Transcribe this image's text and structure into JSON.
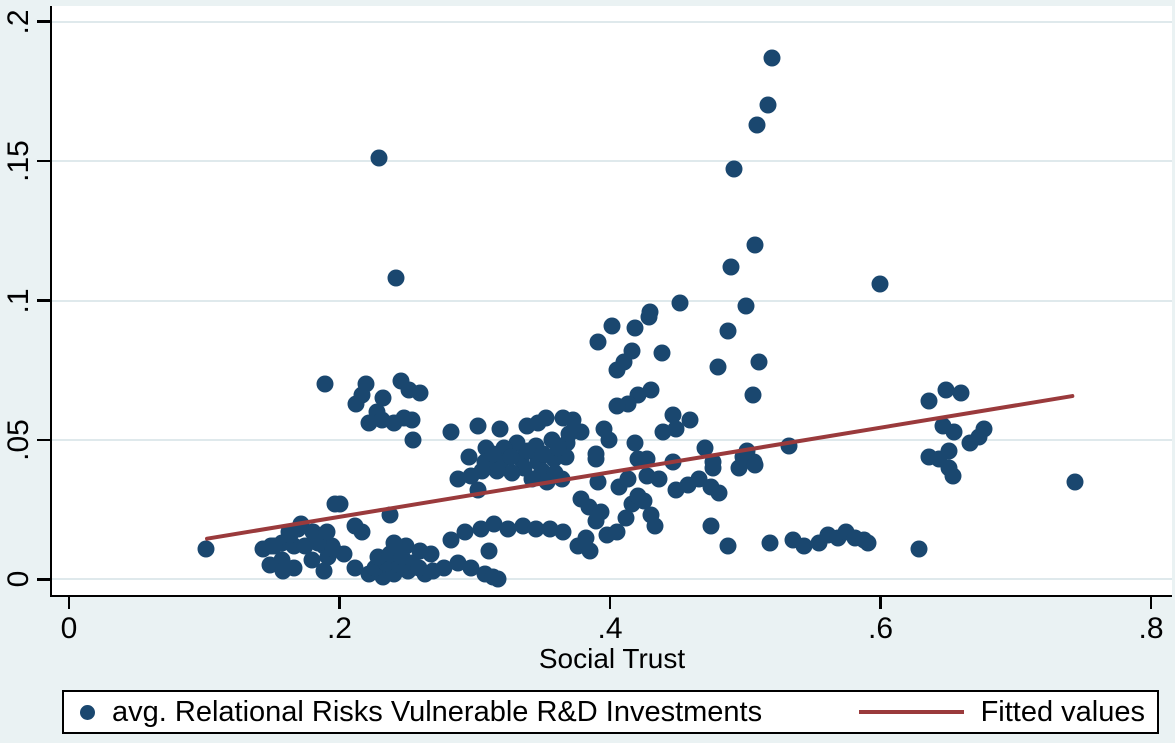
{
  "colors": {
    "background": "#eaf2f3",
    "plot_background": "#ffffff",
    "grid": "#dfe9ec",
    "axis": "#000000",
    "marker": "#1a476f",
    "fitted_line": "#9a3a3c"
  },
  "legend": {
    "scatter_label": "avg. Relational Risks Vulnerable R&D Investments",
    "line_label": "Fitted values"
  },
  "chart_data": {
    "type": "scatter",
    "title": "",
    "xlabel": "Social Trust",
    "ylabel": "",
    "grid": "horizontal",
    "legend_position": "bottom",
    "xlim": [
      -0.014,
      0.814
    ],
    "ylim": [
      -0.0056,
      0.2056
    ],
    "x_ticks": [
      0,
      0.2,
      0.4,
      0.6,
      0.8
    ],
    "x_tick_labels": [
      "0",
      ".2",
      ".4",
      ".6",
      ".8"
    ],
    "y_ticks": [
      0,
      0.05,
      0.1,
      0.15,
      0.2
    ],
    "y_tick_labels": [
      "0",
      ".05",
      ".1",
      ".15",
      ".2"
    ],
    "series": [
      {
        "name": "avg. Relational Risks Vulnerable R&D Investments",
        "type": "scatter",
        "points": [
          [
            0.518,
            0.187
          ],
          [
            0.515,
            0.17
          ],
          [
            0.507,
            0.163
          ],
          [
            0.49,
            0.147
          ],
          [
            0.506,
            0.12
          ],
          [
            0.488,
            0.112
          ],
          [
            0.598,
            0.106
          ],
          [
            0.228,
            0.151
          ],
          [
            0.24,
            0.108
          ],
          [
            0.45,
            0.099
          ],
          [
            0.499,
            0.098
          ],
          [
            0.427,
            0.094
          ],
          [
            0.4,
            0.091
          ],
          [
            0.417,
            0.09
          ],
          [
            0.486,
            0.089
          ],
          [
            0.39,
            0.085
          ],
          [
            0.428,
            0.096
          ],
          [
            0.415,
            0.082
          ],
          [
            0.437,
            0.081
          ],
          [
            0.409,
            0.078
          ],
          [
            0.404,
            0.075
          ],
          [
            0.478,
            0.076
          ],
          [
            0.509,
            0.078
          ],
          [
            0.504,
            0.066
          ],
          [
            0.419,
            0.066
          ],
          [
            0.429,
            0.068
          ],
          [
            0.412,
            0.063
          ],
          [
            0.404,
            0.062
          ],
          [
            0.445,
            0.059
          ],
          [
            0.458,
            0.057
          ],
          [
            0.371,
            0.057
          ],
          [
            0.377,
            0.053
          ],
          [
            0.367,
            0.049
          ],
          [
            0.394,
            0.054
          ],
          [
            0.398,
            0.05
          ],
          [
            0.417,
            0.049
          ],
          [
            0.438,
            0.053
          ],
          [
            0.447,
            0.054
          ],
          [
            0.388,
            0.045
          ],
          [
            0.419,
            0.043
          ],
          [
            0.426,
            0.043
          ],
          [
            0.469,
            0.047
          ],
          [
            0.531,
            0.048
          ],
          [
            0.5,
            0.046
          ],
          [
            0.505,
            0.042
          ],
          [
            0.475,
            0.042
          ],
          [
            0.494,
            0.04
          ],
          [
            0.497,
            0.044
          ],
          [
            0.506,
            0.041
          ],
          [
            0.188,
            0.07
          ],
          [
            0.218,
            0.07
          ],
          [
            0.215,
            0.066
          ],
          [
            0.244,
            0.071
          ],
          [
            0.25,
            0.068
          ],
          [
            0.258,
            0.067
          ],
          [
            0.231,
            0.065
          ],
          [
            0.211,
            0.063
          ],
          [
            0.226,
            0.06
          ],
          [
            0.23,
            0.057
          ],
          [
            0.22,
            0.056
          ],
          [
            0.239,
            0.056
          ],
          [
            0.246,
            0.058
          ],
          [
            0.252,
            0.057
          ],
          [
            0.281,
            0.053
          ],
          [
            0.253,
            0.05
          ],
          [
            0.301,
            0.055
          ],
          [
            0.317,
            0.054
          ],
          [
            0.337,
            0.055
          ],
          [
            0.345,
            0.056
          ],
          [
            0.351,
            0.058
          ],
          [
            0.364,
            0.058
          ],
          [
            0.368,
            0.052
          ],
          [
            0.356,
            0.05
          ],
          [
            0.344,
            0.048
          ],
          [
            0.33,
            0.049
          ],
          [
            0.32,
            0.047
          ],
          [
            0.307,
            0.047
          ],
          [
            0.294,
            0.044
          ],
          [
            0.306,
            0.042
          ],
          [
            0.318,
            0.042
          ],
          [
            0.333,
            0.043
          ],
          [
            0.345,
            0.042
          ],
          [
            0.357,
            0.043
          ],
          [
            0.366,
            0.044
          ],
          [
            0.312,
            0.045
          ],
          [
            0.325,
            0.044
          ],
          [
            0.338,
            0.046
          ],
          [
            0.349,
            0.045
          ],
          [
            0.36,
            0.047
          ],
          [
            0.335,
            0.04
          ],
          [
            0.348,
            0.039
          ],
          [
            0.358,
            0.038
          ],
          [
            0.326,
            0.038
          ],
          [
            0.315,
            0.039
          ],
          [
            0.304,
            0.039
          ],
          [
            0.296,
            0.037
          ],
          [
            0.341,
            0.036
          ],
          [
            0.352,
            0.035
          ],
          [
            0.363,
            0.036
          ],
          [
            0.388,
            0.043
          ],
          [
            0.39,
            0.035
          ],
          [
            0.405,
            0.033
          ],
          [
            0.412,
            0.036
          ],
          [
            0.426,
            0.037
          ],
          [
            0.435,
            0.036
          ],
          [
            0.447,
            0.032
          ],
          [
            0.456,
            0.034
          ],
          [
            0.464,
            0.036
          ],
          [
            0.473,
            0.033
          ],
          [
            0.479,
            0.031
          ],
          [
            0.445,
            0.042
          ],
          [
            0.475,
            0.04
          ],
          [
            0.377,
            0.029
          ],
          [
            0.383,
            0.026
          ],
          [
            0.392,
            0.024
          ],
          [
            0.388,
            0.021
          ],
          [
            0.396,
            0.016
          ],
          [
            0.381,
            0.015
          ],
          [
            0.375,
            0.012
          ],
          [
            0.384,
            0.01
          ],
          [
            0.404,
            0.017
          ],
          [
            0.41,
            0.022
          ],
          [
            0.415,
            0.027
          ],
          [
            0.419,
            0.03
          ],
          [
            0.424,
            0.028
          ],
          [
            0.429,
            0.023
          ],
          [
            0.432,
            0.019
          ],
          [
            0.473,
            0.019
          ],
          [
            0.486,
            0.012
          ],
          [
            0.286,
            0.036
          ],
          [
            0.301,
            0.032
          ],
          [
            0.281,
            0.014
          ],
          [
            0.291,
            0.017
          ],
          [
            0.303,
            0.018
          ],
          [
            0.313,
            0.02
          ],
          [
            0.323,
            0.018
          ],
          [
            0.334,
            0.019
          ],
          [
            0.344,
            0.018
          ],
          [
            0.354,
            0.018
          ],
          [
            0.364,
            0.017
          ],
          [
            0.309,
            0.01
          ],
          [
            0.1,
            0.011
          ],
          [
            0.199,
            0.027
          ],
          [
            0.195,
            0.027
          ],
          [
            0.236,
            0.023
          ],
          [
            0.21,
            0.019
          ],
          [
            0.215,
            0.017
          ],
          [
            0.17,
            0.02
          ],
          [
            0.161,
            0.017
          ],
          [
            0.179,
            0.017
          ],
          [
            0.156,
            0.013
          ],
          [
            0.148,
            0.012
          ],
          [
            0.142,
            0.011
          ],
          [
            0.165,
            0.012
          ],
          [
            0.173,
            0.012
          ],
          [
            0.187,
            0.012
          ],
          [
            0.193,
            0.012
          ],
          [
            0.19,
            0.008
          ],
          [
            0.178,
            0.007
          ],
          [
            0.156,
            0.007
          ],
          [
            0.147,
            0.005
          ],
          [
            0.165,
            0.004
          ],
          [
            0.202,
            0.009
          ],
          [
            0.21,
            0.004
          ],
          [
            0.22,
            0.002
          ],
          [
            0.231,
            0.001
          ],
          [
            0.239,
            0.002
          ],
          [
            0.249,
            0.003
          ],
          [
            0.262,
            0.002
          ],
          [
            0.268,
            0.003
          ],
          [
            0.276,
            0.004
          ],
          [
            0.286,
            0.006
          ],
          [
            0.296,
            0.004
          ],
          [
            0.306,
            0.002
          ],
          [
            0.316,
            0.0
          ],
          [
            0.266,
            0.009
          ],
          [
            0.258,
            0.01
          ],
          [
            0.248,
            0.012
          ],
          [
            0.239,
            0.013
          ],
          [
            0.15,
            0.012
          ],
          [
            0.162,
            0.016
          ],
          [
            0.168,
            0.018
          ],
          [
            0.183,
            0.013
          ],
          [
            0.189,
            0.017
          ],
          [
            0.194,
            0.011
          ],
          [
            0.157,
            0.003
          ],
          [
            0.187,
            0.003
          ],
          [
            0.312,
            0.001
          ],
          [
            0.225,
            0.004
          ],
          [
            0.233,
            0.006
          ],
          [
            0.243,
            0.005
          ],
          [
            0.252,
            0.006
          ],
          [
            0.257,
            0.004
          ],
          [
            0.227,
            0.008
          ],
          [
            0.236,
            0.009
          ],
          [
            0.245,
            0.008
          ],
          [
            0.517,
            0.013
          ],
          [
            0.534,
            0.014
          ],
          [
            0.542,
            0.012
          ],
          [
            0.553,
            0.013
          ],
          [
            0.56,
            0.016
          ],
          [
            0.567,
            0.015
          ],
          [
            0.573,
            0.017
          ],
          [
            0.58,
            0.015
          ],
          [
            0.589,
            0.013
          ],
          [
            0.586,
            0.014
          ],
          [
            0.627,
            0.011
          ],
          [
            0.634,
            0.064
          ],
          [
            0.647,
            0.068
          ],
          [
            0.658,
            0.067
          ],
          [
            0.645,
            0.055
          ],
          [
            0.653,
            0.053
          ],
          [
            0.675,
            0.054
          ],
          [
            0.665,
            0.049
          ],
          [
            0.671,
            0.051
          ],
          [
            0.649,
            0.046
          ],
          [
            0.634,
            0.044
          ],
          [
            0.642,
            0.043
          ],
          [
            0.649,
            0.04
          ],
          [
            0.652,
            0.037
          ],
          [
            0.742,
            0.035
          ]
        ]
      },
      {
        "name": "Fitted values",
        "type": "line",
        "points": [
          [
            0.099,
            0.0144
          ],
          [
            0.742,
            0.0658
          ]
        ]
      }
    ]
  }
}
